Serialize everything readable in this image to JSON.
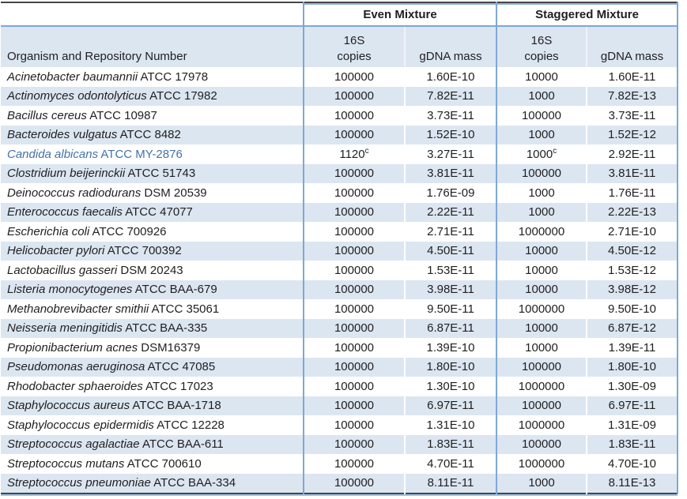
{
  "table": {
    "group_headers": {
      "even": "Even Mixture",
      "staggered": "Staggered Mixture"
    },
    "sub_headers": {
      "organism": "Organism and Repository Number",
      "copies_line1": "16S",
      "copies_line2": "copies",
      "gdna": "gDNA mass"
    },
    "colors": {
      "row_shade": "#dce6f1",
      "border_blue": "#7fa7d3",
      "border_dark": "#474747",
      "highlight_text": "#4372aa"
    },
    "rows": [
      {
        "organism_italic": "Acinetobacter baumannii",
        "organism_rest": "ATCC 17978",
        "even_copies": "100000",
        "even_copies_sup": "",
        "even_gdna": "1.60E-10",
        "stag_copies": "10000",
        "stag_copies_sup": "",
        "stag_gdna": "1.60E-11",
        "highlight": false
      },
      {
        "organism_italic": "Actinomyces odontolyticus",
        "organism_rest": "ATCC 17982",
        "even_copies": "100000",
        "even_copies_sup": "",
        "even_gdna": "7.82E-11",
        "stag_copies": "1000",
        "stag_copies_sup": "",
        "stag_gdna": "7.82E-13",
        "highlight": false
      },
      {
        "organism_italic": "Bacillus cereus",
        "organism_rest": "ATCC 10987",
        "even_copies": "100000",
        "even_copies_sup": "",
        "even_gdna": "3.73E-11",
        "stag_copies": "100000",
        "stag_copies_sup": "",
        "stag_gdna": "3.73E-11",
        "highlight": false
      },
      {
        "organism_italic": "Bacteroides vulgatus",
        "organism_rest": "ATCC 8482",
        "even_copies": "100000",
        "even_copies_sup": "",
        "even_gdna": "1.52E-10",
        "stag_copies": "1000",
        "stag_copies_sup": "",
        "stag_gdna": "1.52E-12",
        "highlight": false
      },
      {
        "organism_italic": "Candida albicans",
        "organism_rest": "ATCC MY-2876",
        "even_copies": "1120",
        "even_copies_sup": "c",
        "even_gdna": "3.27E-11",
        "stag_copies": "1000",
        "stag_copies_sup": "c",
        "stag_gdna": "2.92E-11",
        "highlight": true
      },
      {
        "organism_italic": "Clostridium beijerinckii",
        "organism_rest": "ATCC 51743",
        "even_copies": "100000",
        "even_copies_sup": "",
        "even_gdna": "3.81E-11",
        "stag_copies": "100000",
        "stag_copies_sup": "",
        "stag_gdna": "3.81E-11",
        "highlight": false
      },
      {
        "organism_italic": "Deinococcus radiodurans",
        "organism_rest": "DSM 20539",
        "even_copies": "100000",
        "even_copies_sup": "",
        "even_gdna": "1.76E-09",
        "stag_copies": "1000",
        "stag_copies_sup": "",
        "stag_gdna": "1.76E-11",
        "highlight": false
      },
      {
        "organism_italic": "Enterococcus faecalis",
        "organism_rest": "ATCC 47077",
        "even_copies": "100000",
        "even_copies_sup": "",
        "even_gdna": "2.22E-11",
        "stag_copies": "1000",
        "stag_copies_sup": "",
        "stag_gdna": "2.22E-13",
        "highlight": false
      },
      {
        "organism_italic": "Escherichia coli",
        "organism_rest": "ATCC 700926",
        "even_copies": "100000",
        "even_copies_sup": "",
        "even_gdna": "2.71E-11",
        "stag_copies": "1000000",
        "stag_copies_sup": "",
        "stag_gdna": "2.71E-10",
        "highlight": false
      },
      {
        "organism_italic": "Helicobacter pylori",
        "organism_rest": "ATCC 700392",
        "even_copies": "100000",
        "even_copies_sup": "",
        "even_gdna": "4.50E-11",
        "stag_copies": "10000",
        "stag_copies_sup": "",
        "stag_gdna": "4.50E-12",
        "highlight": false
      },
      {
        "organism_italic": "Lactobacillus gasseri",
        "organism_rest": "DSM 20243",
        "even_copies": "100000",
        "even_copies_sup": "",
        "even_gdna": "1.53E-11",
        "stag_copies": "10000",
        "stag_copies_sup": "",
        "stag_gdna": "1.53E-12",
        "highlight": false
      },
      {
        "organism_italic": "Listeria monocytogenes",
        "organism_rest": "ATCC BAA-679",
        "even_copies": "100000",
        "even_copies_sup": "",
        "even_gdna": "3.98E-11",
        "stag_copies": "10000",
        "stag_copies_sup": "",
        "stag_gdna": "3.98E-12",
        "highlight": false
      },
      {
        "organism_italic": "Methanobrevibacter smithii",
        "organism_rest": "ATCC 35061",
        "even_copies": "100000",
        "even_copies_sup": "",
        "even_gdna": "9.50E-11",
        "stag_copies": "1000000",
        "stag_copies_sup": "",
        "stag_gdna": "9.50E-10",
        "highlight": false
      },
      {
        "organism_italic": "Neisseria meningitidis",
        "organism_rest": "ATCC BAA-335",
        "even_copies": "100000",
        "even_copies_sup": "",
        "even_gdna": "6.87E-11",
        "stag_copies": "10000",
        "stag_copies_sup": "",
        "stag_gdna": "6.87E-12",
        "highlight": false
      },
      {
        "organism_italic": "Propionibacterium acnes",
        "organism_rest": "DSM16379",
        "even_copies": "100000",
        "even_copies_sup": "",
        "even_gdna": "1.39E-10",
        "stag_copies": "10000",
        "stag_copies_sup": "",
        "stag_gdna": "1.39E-11",
        "highlight": false
      },
      {
        "organism_italic": "Pseudomonas aeruginosa",
        "organism_rest": "ATCC 47085",
        "even_copies": "100000",
        "even_copies_sup": "",
        "even_gdna": "1.80E-10",
        "stag_copies": "100000",
        "stag_copies_sup": "",
        "stag_gdna": "1.80E-10",
        "highlight": false
      },
      {
        "organism_italic": "Rhodobacter sphaeroides",
        "organism_rest": "ATCC 17023",
        "even_copies": "100000",
        "even_copies_sup": "",
        "even_gdna": "1.30E-10",
        "stag_copies": "1000000",
        "stag_copies_sup": "",
        "stag_gdna": "1.30E-09",
        "highlight": false
      },
      {
        "organism_italic": "Staphylococcus aureus",
        "organism_rest": "ATCC BAA-1718",
        "even_copies": "100000",
        "even_copies_sup": "",
        "even_gdna": "6.97E-11",
        "stag_copies": "100000",
        "stag_copies_sup": "",
        "stag_gdna": "6.97E-11",
        "highlight": false
      },
      {
        "organism_italic": "Staphylococcus epidermidis",
        "organism_rest": "ATCC 12228",
        "even_copies": "100000",
        "even_copies_sup": "",
        "even_gdna": "1.31E-10",
        "stag_copies": "1000000",
        "stag_copies_sup": "",
        "stag_gdna": "1.31E-09",
        "highlight": false
      },
      {
        "organism_italic": "Streptococcus agalactiae",
        "organism_rest": "ATCC BAA-611",
        "even_copies": "100000",
        "even_copies_sup": "",
        "even_gdna": "1.83E-11",
        "stag_copies": "100000",
        "stag_copies_sup": "",
        "stag_gdna": "1.83E-11",
        "highlight": false
      },
      {
        "organism_italic": "Streptococcus mutans",
        "organism_rest": "ATCC 700610",
        "even_copies": "100000",
        "even_copies_sup": "",
        "even_gdna": "4.70E-11",
        "stag_copies": "1000000",
        "stag_copies_sup": "",
        "stag_gdna": "4.70E-10",
        "highlight": false
      },
      {
        "organism_italic": "Streptococcus pneumoniae",
        "organism_rest": "ATCC BAA-334",
        "even_copies": "100000",
        "even_copies_sup": "",
        "even_gdna": "8.11E-11",
        "stag_copies": "1000",
        "stag_copies_sup": "",
        "stag_gdna": "8.11E-13",
        "highlight": false
      }
    ]
  }
}
